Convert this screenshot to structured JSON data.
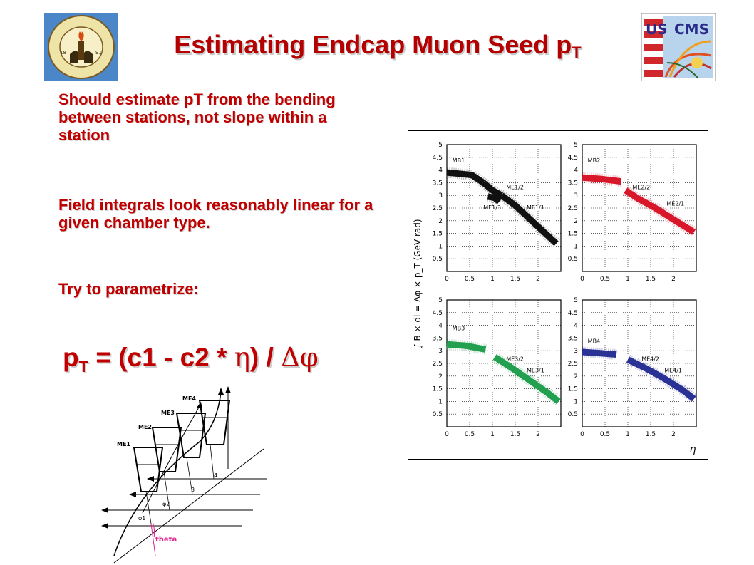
{
  "slide": {
    "title": "Estimating  Endcap Muon Seed p",
    "title_sub": "T",
    "bullets": [
      "Should estimate pT from the bending between stations, not slope within a station",
      "Field integrals look reasonably linear for a given chamber type.",
      "Try to parametrize:"
    ],
    "formula": {
      "p": "p",
      "p_sub": "T",
      "body": " = (c1 - c2 * ",
      "eta": "η",
      "mid": ") / ",
      "delta_phi": "Δφ"
    }
  },
  "logos": {
    "left": {
      "name": "caltech-seal",
      "lettering": "CALIFORNIA INSTITUTE OF TECHNOLOGY 1891"
    },
    "right": {
      "name": "uscms-logo",
      "lettering": "US CMS"
    }
  },
  "chart_data": {
    "type": "scatter",
    "ylabel": "∫ B × dl = Δφ × p_T (GeV rad)",
    "xlabel": "η",
    "xlim": [
      0,
      2.5
    ],
    "ylim": [
      0,
      5
    ],
    "xticks": [
      "0",
      "0.5",
      "1",
      "1.5",
      "2"
    ],
    "yticks": [
      "0.5",
      "1",
      "1.5",
      "2",
      "2.5",
      "3",
      "3.5",
      "4",
      "4.5",
      "5"
    ],
    "grid": true,
    "panels": [
      {
        "name": "MB1",
        "color": "#111111",
        "labels": [
          {
            "text": "MB1",
            "x": 0.12,
            "y": 4.3
          },
          {
            "text": "ME1/2",
            "x": 1.3,
            "y": 3.25
          },
          {
            "text": "ME1/3",
            "x": 0.8,
            "y": 2.45
          },
          {
            "text": "ME1/1",
            "x": 1.75,
            "y": 2.45
          }
        ],
        "segments": [
          {
            "x": [
              0,
              0.3,
              0.55,
              0.8
            ],
            "y": [
              3.9,
              3.85,
              3.8,
              3.5
            ]
          },
          {
            "x": [
              0.8,
              1.0,
              1.2
            ],
            "y": [
              3.5,
              3.2,
              3.0
            ]
          },
          {
            "x": [
              0.9,
              1.05,
              1.15
            ],
            "y": [
              2.95,
              2.9,
              2.75
            ]
          },
          {
            "x": [
              1.2,
              1.5,
              1.8,
              2.1,
              2.4
            ],
            "y": [
              3.0,
              2.6,
              2.1,
              1.6,
              1.1
            ]
          }
        ]
      },
      {
        "name": "MB2",
        "color": "#d8182a",
        "labels": [
          {
            "text": "MB2",
            "x": 0.12,
            "y": 4.3
          },
          {
            "text": "ME2/2",
            "x": 1.1,
            "y": 3.25
          },
          {
            "text": "ME2/1",
            "x": 1.85,
            "y": 2.6
          }
        ],
        "segments": [
          {
            "x": [
              0,
              0.4,
              0.85
            ],
            "y": [
              3.7,
              3.65,
              3.55
            ]
          },
          {
            "x": [
              0.95,
              1.2,
              1.6,
              2.0,
              2.45
            ],
            "y": [
              3.2,
              2.9,
              2.5,
              2.05,
              1.55
            ]
          }
        ]
      },
      {
        "name": "MB3",
        "color": "#22a050",
        "labels": [
          {
            "text": "MB3",
            "x": 0.12,
            "y": 3.8
          },
          {
            "text": "ME3/2",
            "x": 1.3,
            "y": 2.6
          },
          {
            "text": "ME3/1",
            "x": 1.75,
            "y": 2.15
          }
        ],
        "segments": [
          {
            "x": [
              0,
              0.4,
              0.85
            ],
            "y": [
              3.25,
              3.2,
              3.05
            ]
          },
          {
            "x": [
              1.05,
              1.4,
              1.8,
              2.2,
              2.45
            ],
            "y": [
              2.75,
              2.35,
              1.85,
              1.35,
              1.0
            ]
          }
        ]
      },
      {
        "name": "MB4",
        "color": "#2a3296",
        "labels": [
          {
            "text": "MB4",
            "x": 0.12,
            "y": 3.3
          },
          {
            "text": "ME4/2",
            "x": 1.3,
            "y": 2.6
          },
          {
            "text": "ME4/1",
            "x": 1.8,
            "y": 2.15
          }
        ],
        "segments": [
          {
            "x": [
              0,
              0.4,
              0.75
            ],
            "y": [
              2.95,
              2.9,
              2.85
            ]
          },
          {
            "x": [
              1.0,
              1.4,
              1.8,
              2.2,
              2.45
            ],
            "y": [
              2.65,
              2.3,
              1.9,
              1.45,
              1.1
            ]
          }
        ]
      }
    ]
  },
  "diagram": {
    "stations": [
      "ME1",
      "ME2",
      "ME3",
      "ME4"
    ],
    "phi_labels": [
      "φ1",
      "φ2",
      "3",
      "4"
    ],
    "angle_label": "theta"
  }
}
